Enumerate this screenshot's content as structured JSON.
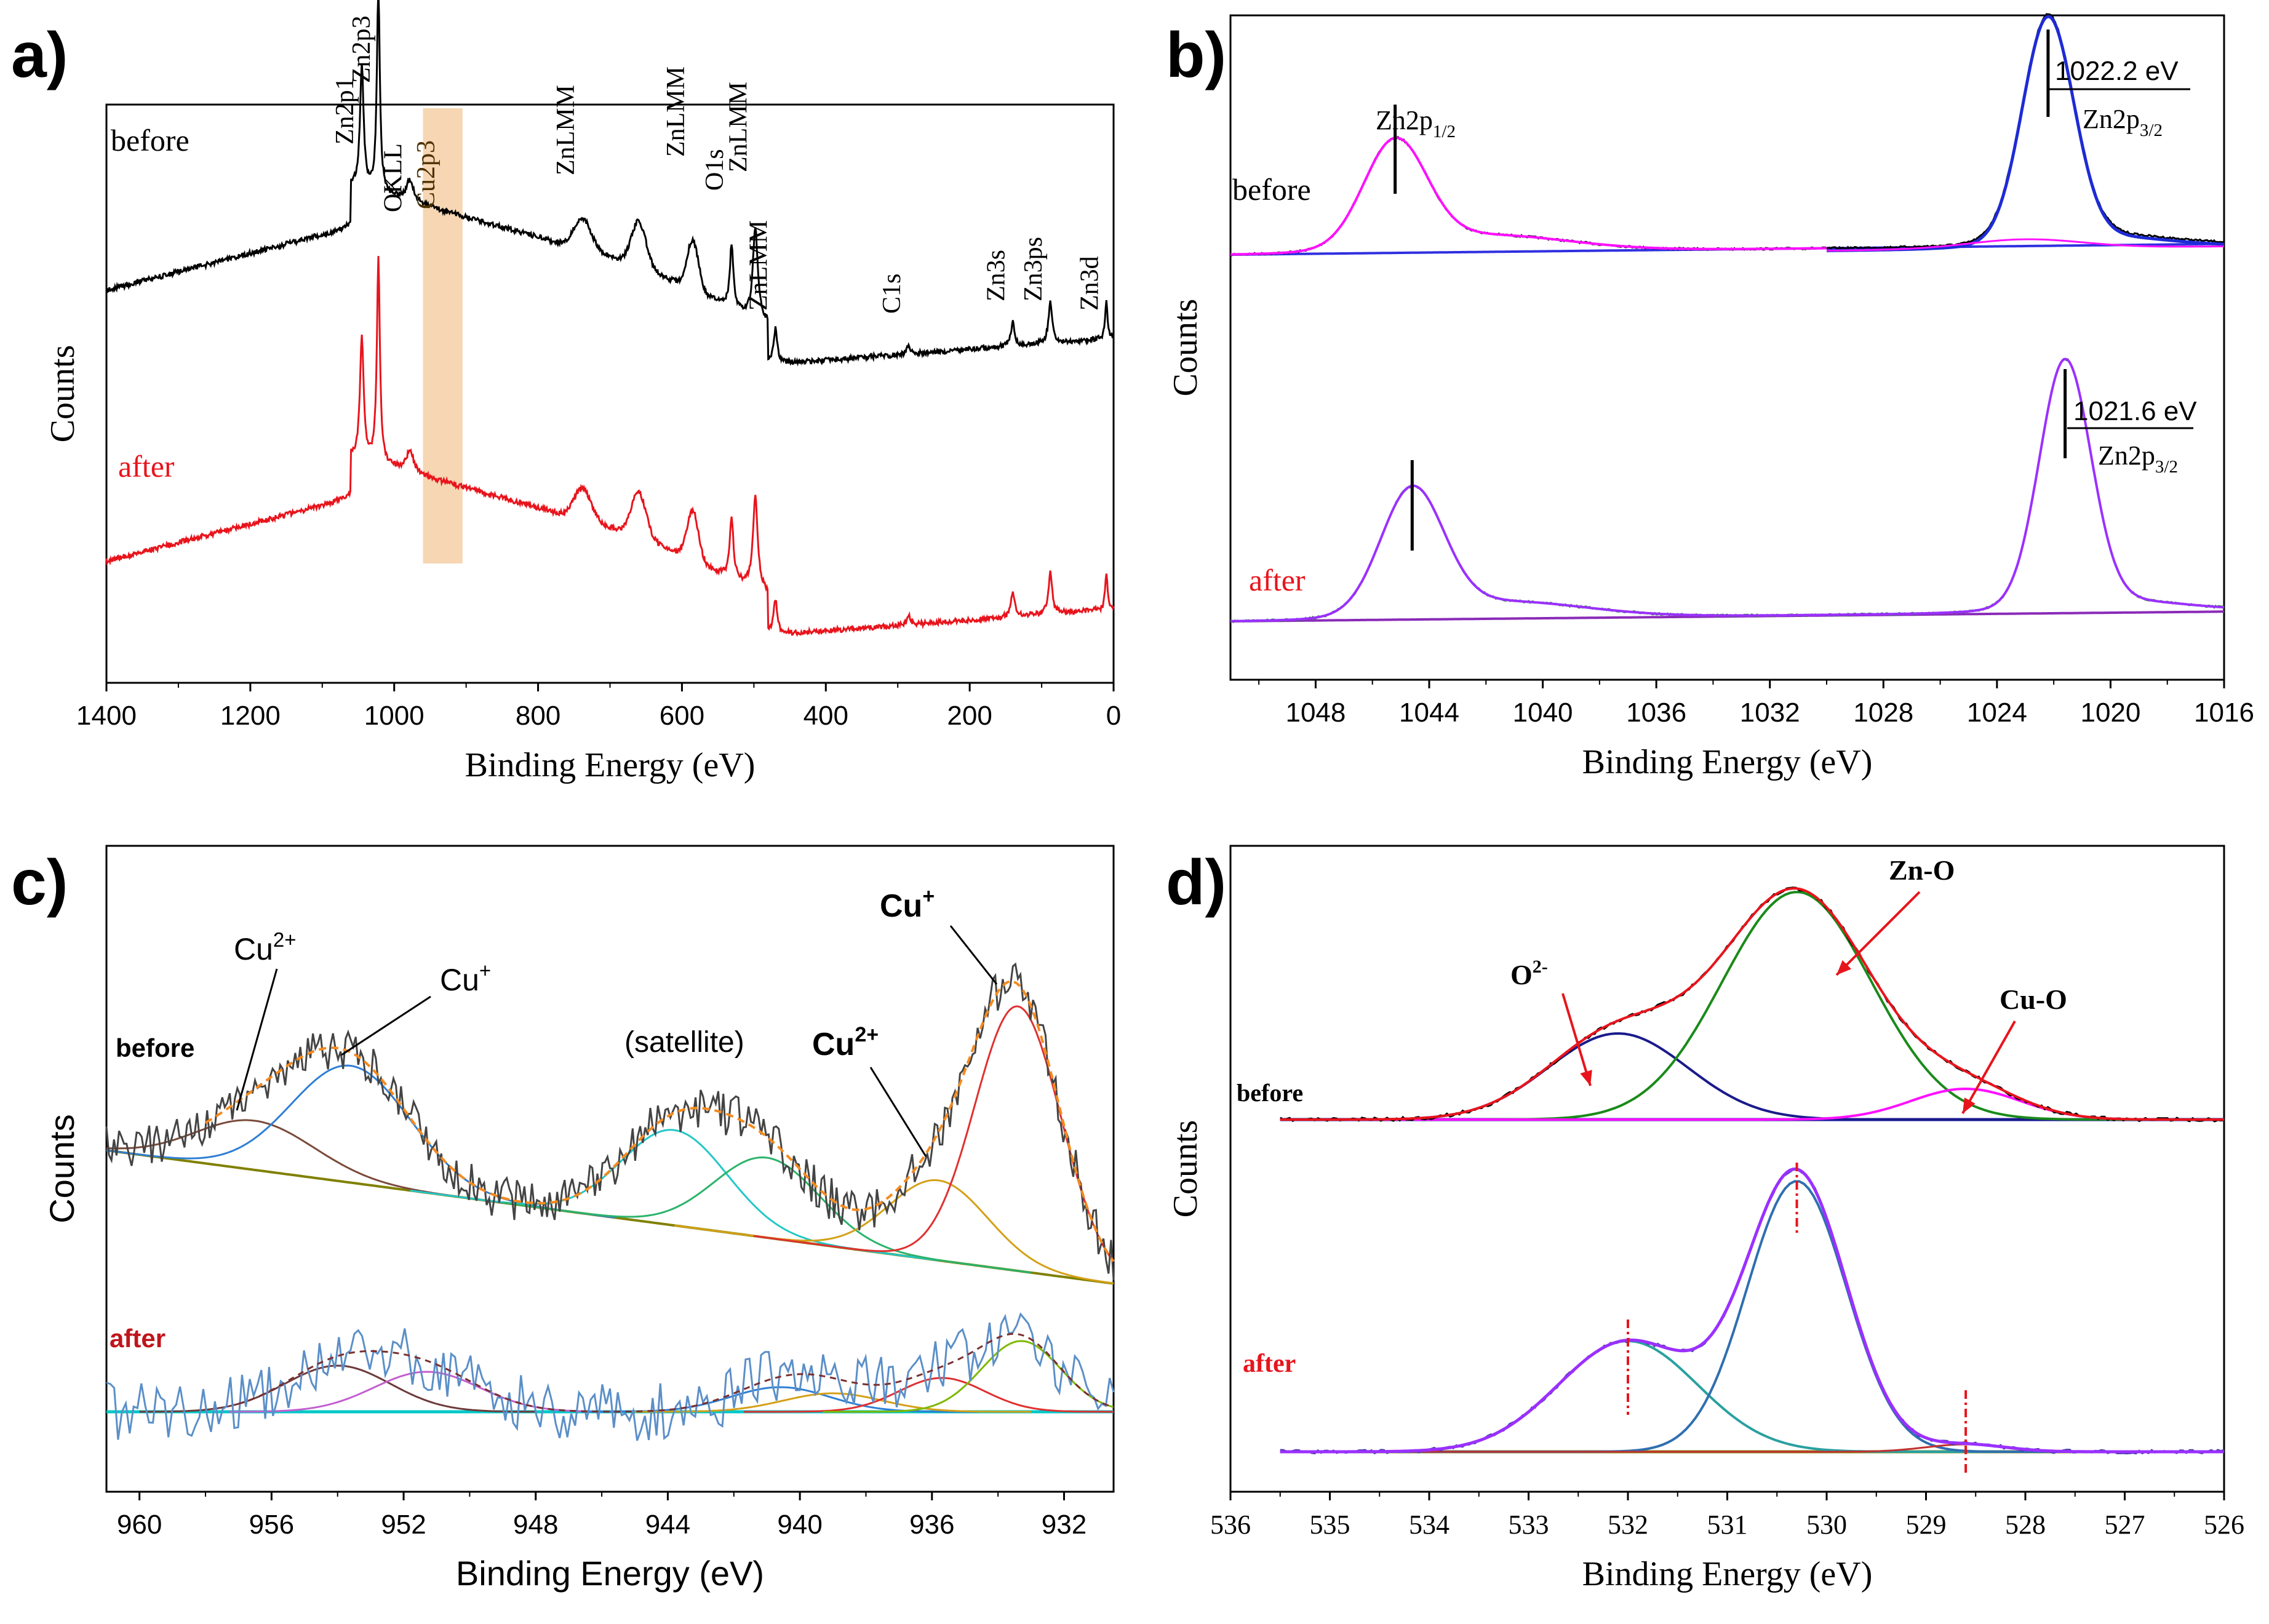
{
  "chart_data": [
    {
      "panel": "a)",
      "type": "line",
      "xlabel": "Binding Energy (eV)",
      "ylabel": "Counts",
      "xlim": [
        1400,
        0
      ],
      "xticks": [
        "1400",
        "1200",
        "1000",
        "800",
        "600",
        "400",
        "200",
        "0"
      ],
      "series": [
        {
          "name": "before",
          "color": "#000000"
        },
        {
          "name": "after",
          "color": "#e8141c"
        }
      ],
      "highlight": {
        "range_eV": [
          960,
          905
        ],
        "color": "#f5cfa6"
      },
      "annotations": [
        "Zn2p1",
        "Zn2p3",
        "OKLL",
        "Cu2p3",
        "ZnLMM",
        "ZnLMM",
        "O1s",
        "ZnLMM",
        "ZnLMM",
        "C1s",
        "Zn3s",
        "Zn3ps",
        "Zn3d"
      ],
      "peaks_eV": [
        1045,
        1022,
        978,
        932,
        738,
        585,
        531,
        498,
        470,
        285,
        140,
        88,
        10
      ]
    },
    {
      "panel": "b)",
      "type": "line",
      "xlabel": "Binding Energy (eV)",
      "ylabel": "Counts",
      "xlim": [
        1051,
        1016
      ],
      "xticks": [
        "1048",
        "1044",
        "1040",
        "1036",
        "1032",
        "1028",
        "1024",
        "1020",
        "1016"
      ],
      "series": [
        {
          "name": "before",
          "peaks_eV": [
            1045.2,
            1022.2
          ]
        },
        {
          "name": "after",
          "peaks_eV": [
            1044.6,
            1021.6
          ]
        }
      ],
      "annotations": {
        "before_peak_energy": "1022.2 eV",
        "after_peak_energy": "1021.6 eV",
        "zn2p12_label": "Zn2p",
        "zn2p12_sub": "1/2",
        "zn2p32_label": "Zn2p",
        "zn2p32_sub": "3/2"
      }
    },
    {
      "panel": "c)",
      "type": "line",
      "xlabel": "Binding Energy (eV)",
      "ylabel": "Counts",
      "xlim": [
        961,
        930.5
      ],
      "xticks": [
        "960",
        "956",
        "952",
        "948",
        "944",
        "940",
        "936",
        "932"
      ],
      "series": [
        {
          "name": "before",
          "fit_peaks_eV": [
            956.5,
            953.6,
            943.8,
            941.0,
            935.8,
            933.4
          ]
        },
        {
          "name": "after",
          "fit_peaks_eV": [
            954.0,
            951.3,
            940.6,
            939.0,
            935.7,
            933.3
          ]
        }
      ],
      "annotations": {
        "cu2_small": "Cu",
        "cu2_small_sup": "2+",
        "cu1_small": "Cu",
        "cu1_small_sup": "+",
        "satellite": "(satellite)",
        "cu2_bold": "Cu",
        "cu2_bold_sup": "2+",
        "cu1_bold": "Cu",
        "cu1_bold_sup": "+"
      }
    },
    {
      "panel": "d)",
      "type": "line",
      "xlabel": "Binding Energy (eV)",
      "ylabel": "Counts",
      "xlim": [
        536,
        526
      ],
      "xticks": [
        "536",
        "535",
        "534",
        "533",
        "532",
        "531",
        "530",
        "529",
        "528",
        "527",
        "526"
      ],
      "series": [
        {
          "name": "before",
          "fit_peaks_eV": [
            532.1,
            530.3,
            528.6
          ]
        },
        {
          "name": "after",
          "fit_peaks_eV": [
            532.0,
            530.3,
            528.6
          ]
        }
      ],
      "annotations": {
        "o2": "O",
        "o2_sup": "2-",
        "zno": "Zn-O",
        "cuo": "Cu-O"
      }
    }
  ]
}
